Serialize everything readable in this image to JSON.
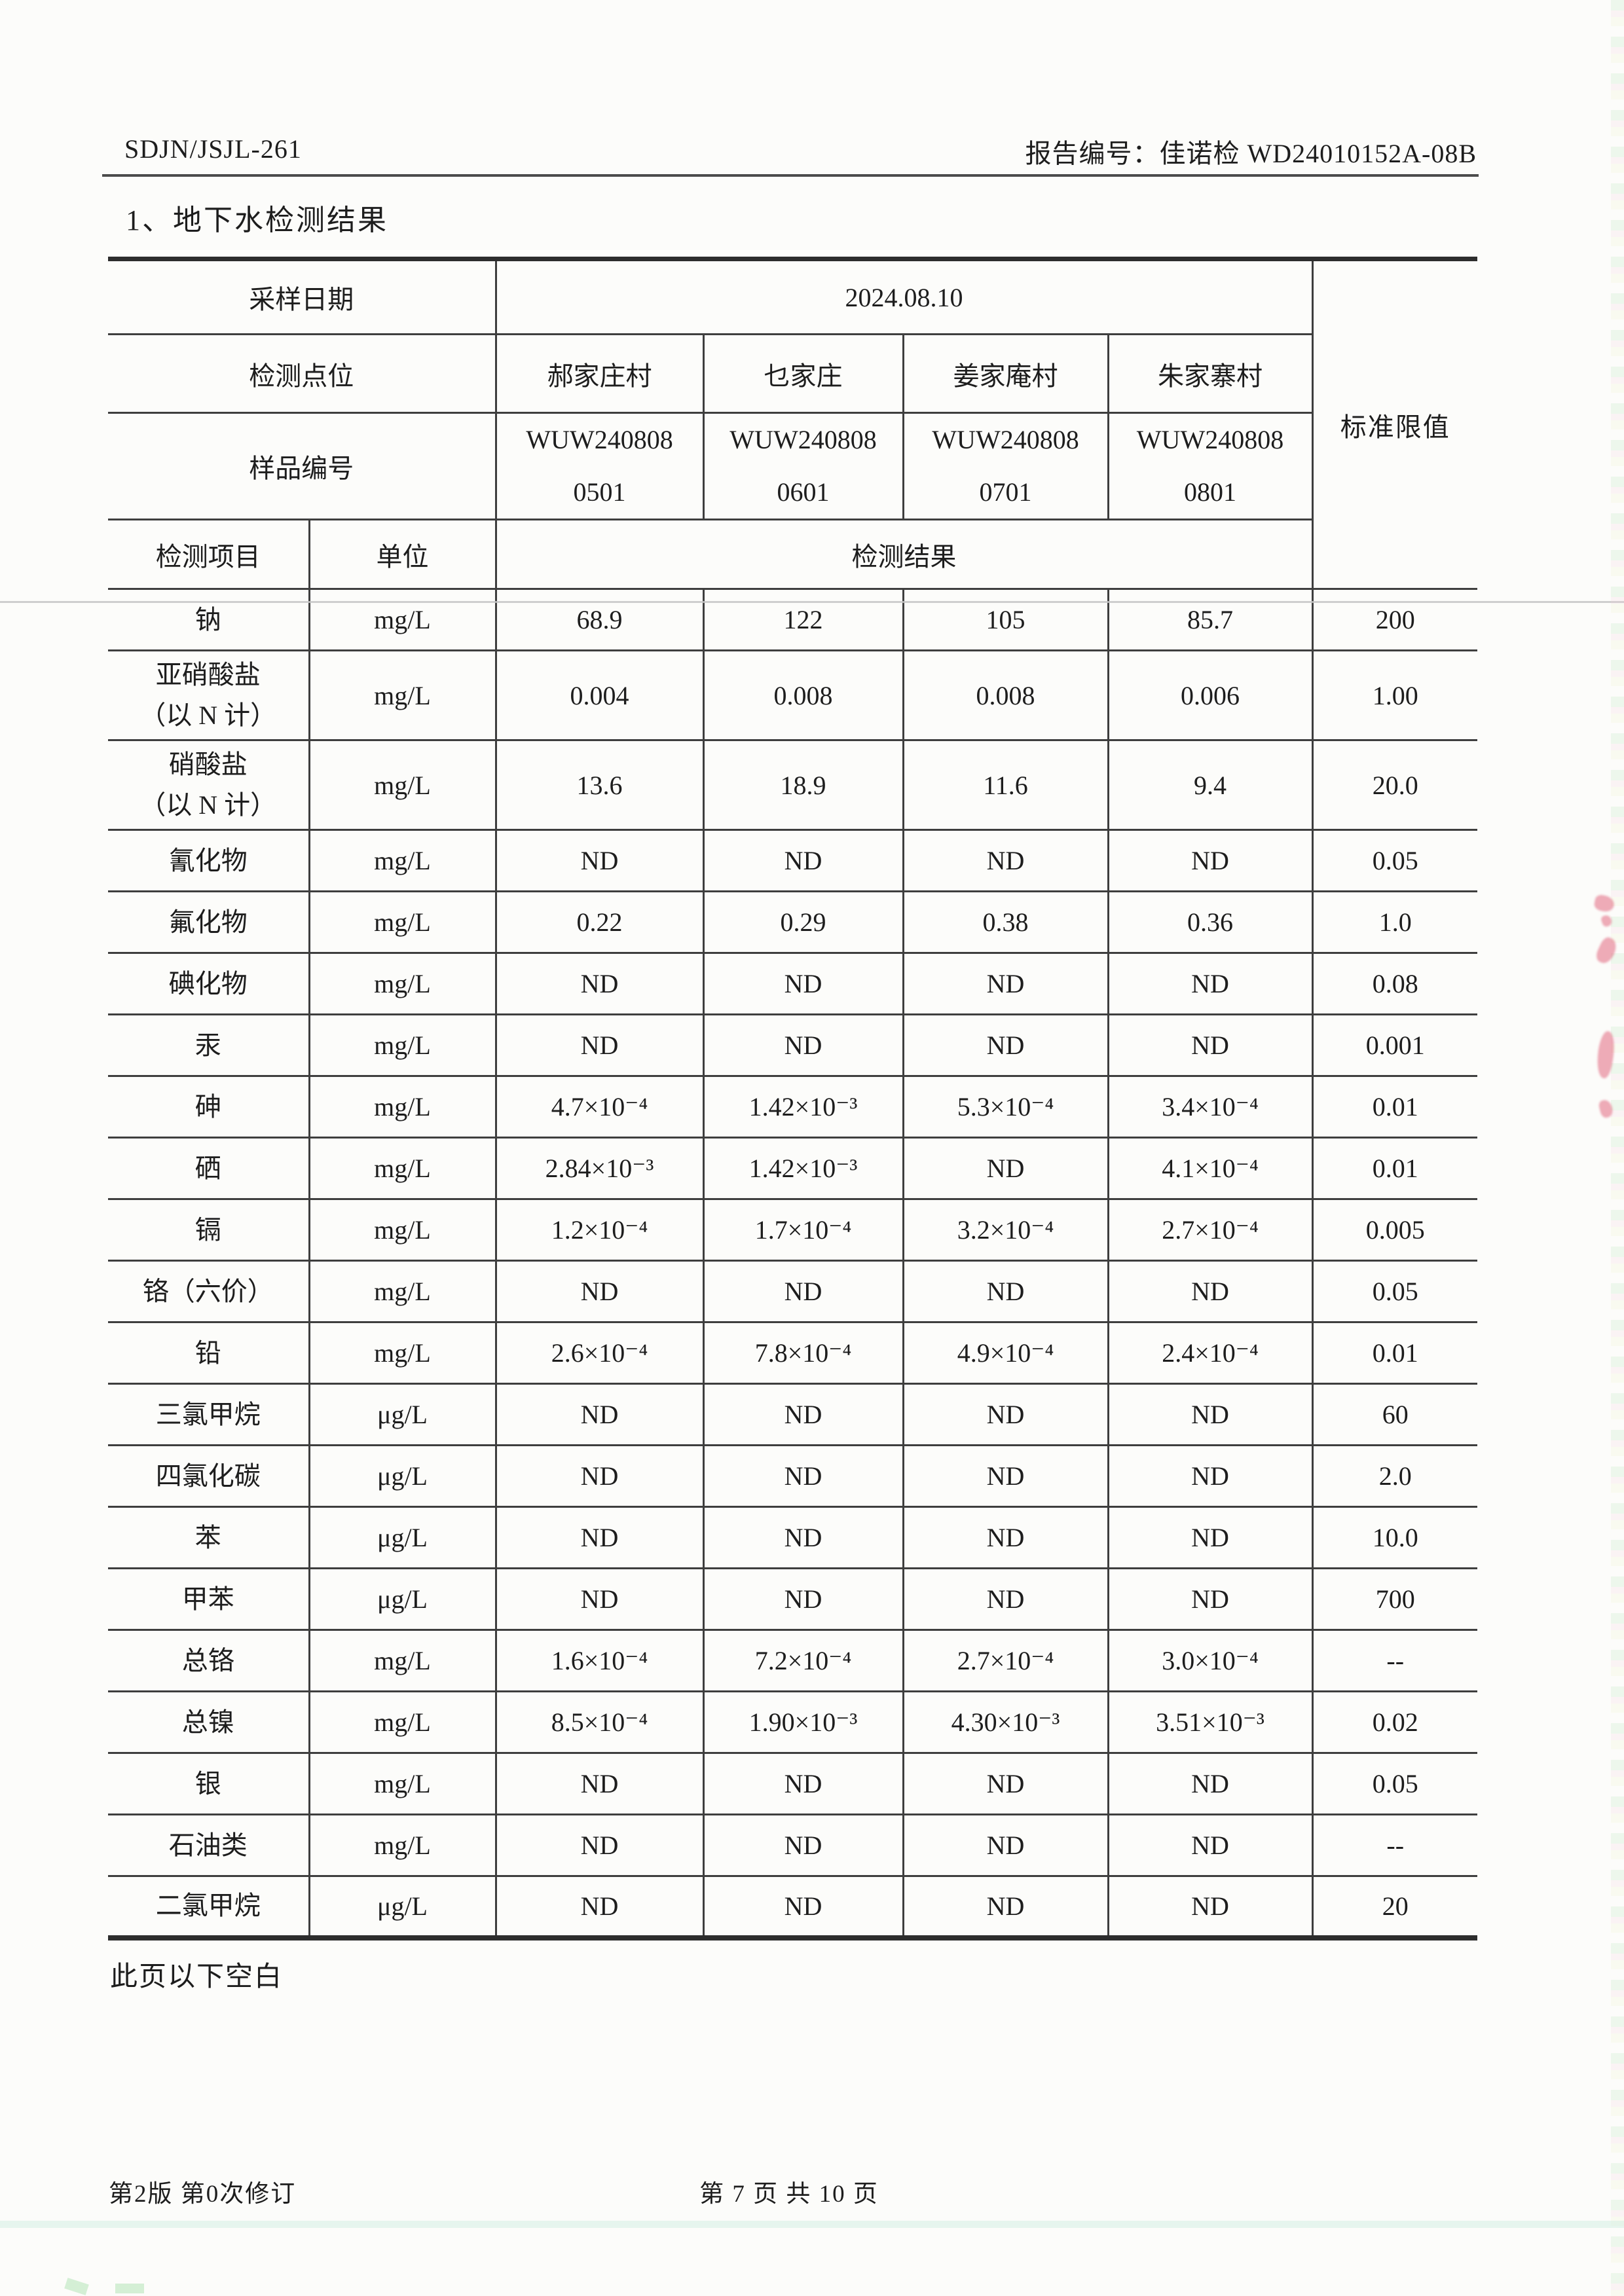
{
  "page": {
    "doc_code": "SDJN/JSJL-261",
    "report_no": "报告编号：佳诺检 WD24010152A-08B",
    "section_title": "1、地下水检测结果",
    "blank_note": "此页以下空白",
    "footer": {
      "revision": "第2版 第0次修订",
      "page_indicator": "第 7 页 共 10 页"
    }
  },
  "table": {
    "header": {
      "sampling_date_label": "采样日期",
      "sampling_date": "2024.08.10",
      "point_label": "检测点位",
      "points": [
        "郝家庄村",
        "乜家庄",
        "姜家庵村",
        "朱家寨村"
      ],
      "sample_id_label": "样品编号",
      "sample_ids": [
        "WUW240808\n0501",
        "WUW240808\n0601",
        "WUW240808\n0701",
        "WUW240808\n0801"
      ],
      "item_label": "检测项目",
      "unit_label": "单位",
      "result_label": "检测结果",
      "limit_label": "标准限值"
    },
    "rows": [
      {
        "item": "钠",
        "unit": "mg/L",
        "values": [
          "68.9",
          "122",
          "105",
          "85.7"
        ],
        "limit": "200"
      },
      {
        "item": "亚硝酸盐\n（以 N 计）",
        "unit": "mg/L",
        "values": [
          "0.004",
          "0.008",
          "0.008",
          "0.006"
        ],
        "limit": "1.00",
        "tall": true
      },
      {
        "item": "硝酸盐\n（以 N 计）",
        "unit": "mg/L",
        "values": [
          "13.6",
          "18.9",
          "11.6",
          "9.4"
        ],
        "limit": "20.0",
        "tall": true
      },
      {
        "item": "氰化物",
        "unit": "mg/L",
        "values": [
          "ND",
          "ND",
          "ND",
          "ND"
        ],
        "limit": "0.05"
      },
      {
        "item": "氟化物",
        "unit": "mg/L",
        "values": [
          "0.22",
          "0.29",
          "0.38",
          "0.36"
        ],
        "limit": "1.0"
      },
      {
        "item": "碘化物",
        "unit": "mg/L",
        "values": [
          "ND",
          "ND",
          "ND",
          "ND"
        ],
        "limit": "0.08"
      },
      {
        "item": "汞",
        "unit": "mg/L",
        "values": [
          "ND",
          "ND",
          "ND",
          "ND"
        ],
        "limit": "0.001"
      },
      {
        "item": "砷",
        "unit": "mg/L",
        "values": [
          "4.7×10⁻⁴",
          "1.42×10⁻³",
          "5.3×10⁻⁴",
          "3.4×10⁻⁴"
        ],
        "limit": "0.01"
      },
      {
        "item": "硒",
        "unit": "mg/L",
        "values": [
          "2.84×10⁻³",
          "1.42×10⁻³",
          "ND",
          "4.1×10⁻⁴"
        ],
        "limit": "0.01"
      },
      {
        "item": "镉",
        "unit": "mg/L",
        "values": [
          "1.2×10⁻⁴",
          "1.7×10⁻⁴",
          "3.2×10⁻⁴",
          "2.7×10⁻⁴"
        ],
        "limit": "0.005"
      },
      {
        "item": "铬（六价）",
        "unit": "mg/L",
        "values": [
          "ND",
          "ND",
          "ND",
          "ND"
        ],
        "limit": "0.05"
      },
      {
        "item": "铅",
        "unit": "mg/L",
        "values": [
          "2.6×10⁻⁴",
          "7.8×10⁻⁴",
          "4.9×10⁻⁴",
          "2.4×10⁻⁴"
        ],
        "limit": "0.01"
      },
      {
        "item": "三氯甲烷",
        "unit": "μg/L",
        "values": [
          "ND",
          "ND",
          "ND",
          "ND"
        ],
        "limit": "60"
      },
      {
        "item": "四氯化碳",
        "unit": "μg/L",
        "values": [
          "ND",
          "ND",
          "ND",
          "ND"
        ],
        "limit": "2.0"
      },
      {
        "item": "苯",
        "unit": "μg/L",
        "values": [
          "ND",
          "ND",
          "ND",
          "ND"
        ],
        "limit": "10.0"
      },
      {
        "item": "甲苯",
        "unit": "μg/L",
        "values": [
          "ND",
          "ND",
          "ND",
          "ND"
        ],
        "limit": "700"
      },
      {
        "item": "总铬",
        "unit": "mg/L",
        "values": [
          "1.6×10⁻⁴",
          "7.2×10⁻⁴",
          "2.7×10⁻⁴",
          "3.0×10⁻⁴"
        ],
        "limit": "--"
      },
      {
        "item": "总镍",
        "unit": "mg/L",
        "values": [
          "8.5×10⁻⁴",
          "1.90×10⁻³",
          "4.30×10⁻³",
          "3.51×10⁻³"
        ],
        "limit": "0.02"
      },
      {
        "item": "银",
        "unit": "mg/L",
        "values": [
          "ND",
          "ND",
          "ND",
          "ND"
        ],
        "limit": "0.05"
      },
      {
        "item": "石油类",
        "unit": "mg/L",
        "values": [
          "ND",
          "ND",
          "ND",
          "ND"
        ],
        "limit": "--"
      },
      {
        "item": "二氯甲烷",
        "unit": "μg/L",
        "values": [
          "ND",
          "ND",
          "ND",
          "ND"
        ],
        "limit": "20"
      }
    ]
  },
  "colors": {
    "ink": "#1d1d1d",
    "table_line": "#3e3e3e",
    "paper": "#fcfcfa",
    "stamp_bleed_pink": "#e05a73",
    "scan_edge_green": "#bfe8c2"
  }
}
